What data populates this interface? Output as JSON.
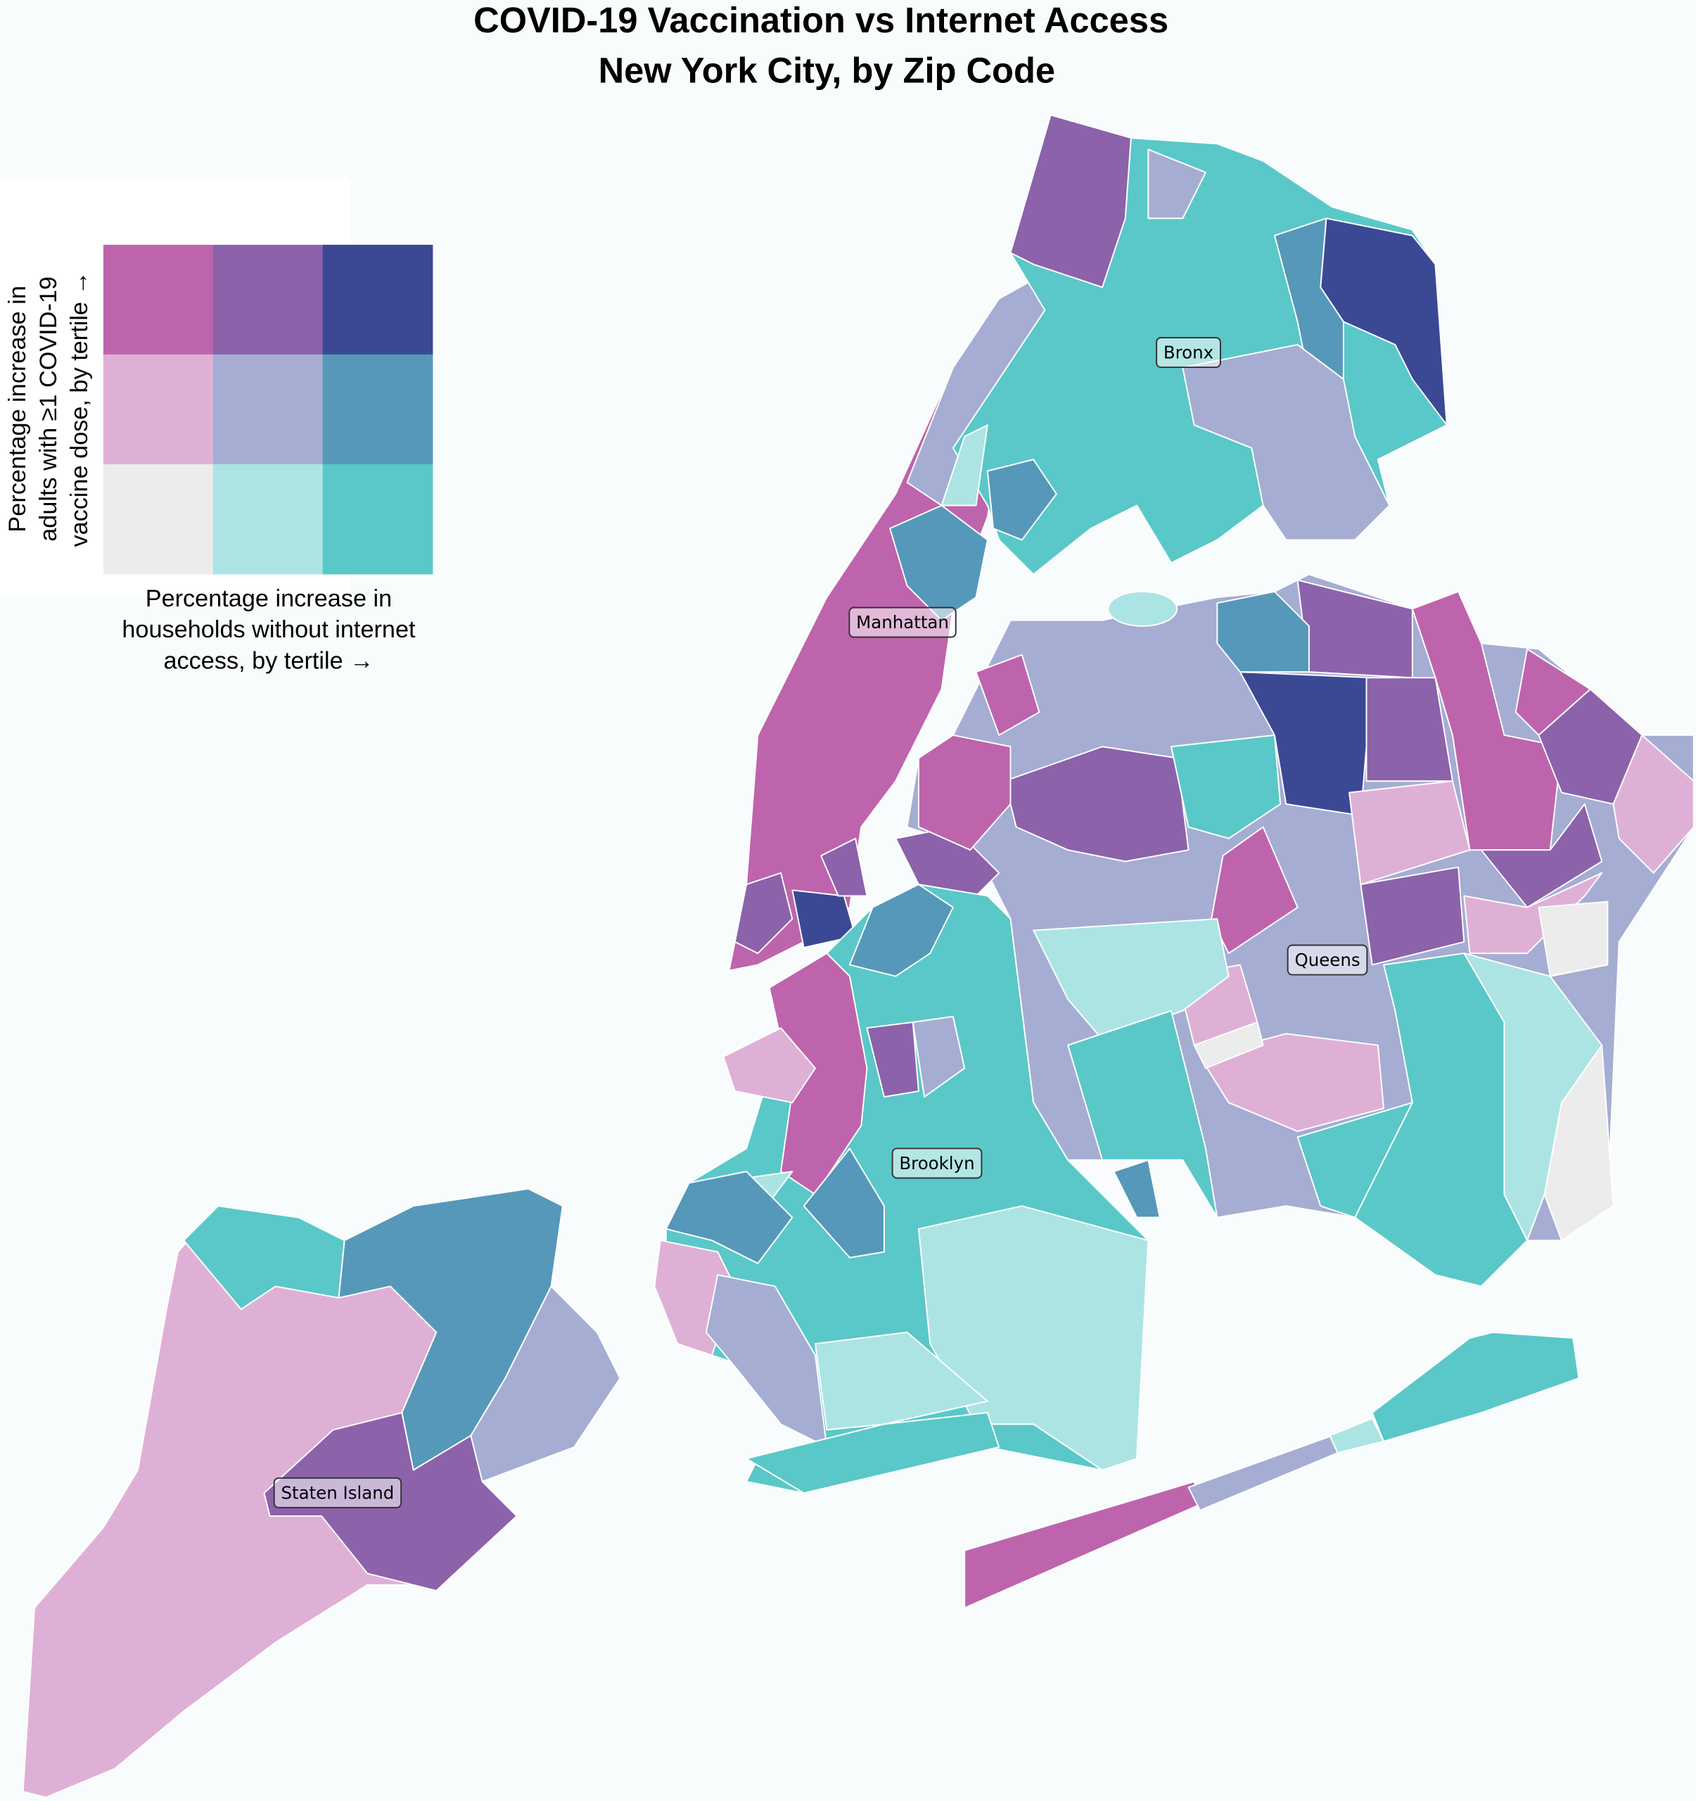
{
  "title": [
    "COVID-19 Vaccination vs Internet Access",
    "New York City, by Zip Code"
  ],
  "legend": {
    "y_label": [
      "Percentage increase in",
      "adults with ≥1 COVID-19",
      "vaccine dose, by tertile →"
    ],
    "x_label": [
      "Percentage increase in",
      "households without internet",
      "access, by tertile →"
    ],
    "colors": [
      [
        "#be64ac",
        "#8c62aa",
        "#3b4994"
      ],
      [
        "#dfb0d6",
        "#a5add3",
        "#5698b9"
      ],
      [
        "#ececec",
        "#ace4e4",
        "#5ac8c8"
      ]
    ]
  },
  "boroughs": [
    "Bronx",
    "Manhattan",
    "Queens",
    "Brooklyn",
    "Staten Island"
  ]
}
